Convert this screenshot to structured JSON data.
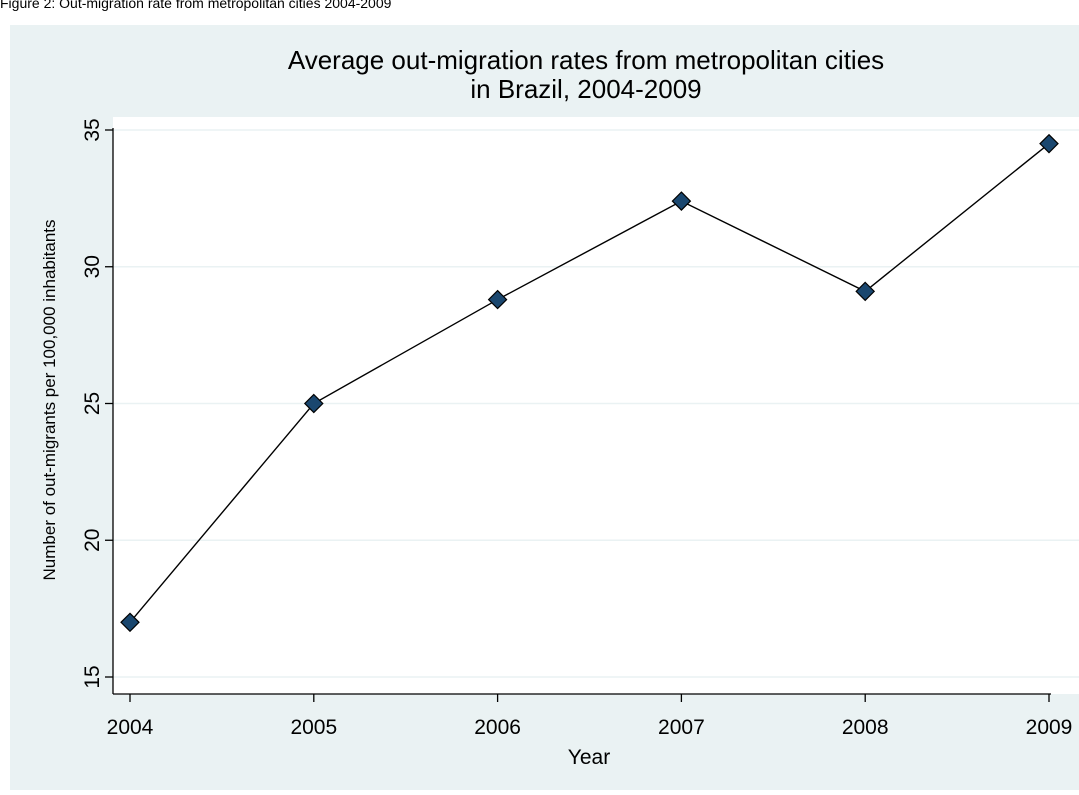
{
  "caption": "Figure 2: Out-migration rate from metropolitan cities 2004-2009",
  "colors": {
    "outer_background": "#eaf2f3",
    "plot_background": "#ffffff",
    "gridline": "#eaf2f3",
    "line": "#000000",
    "marker_fill": "#1a476f",
    "marker_stroke": "#000000"
  },
  "chart_data": {
    "type": "line",
    "title_line1": "Average out-migration rates from metropolitan cities",
    "title_line2": "in Brazil, 2004-2009",
    "xlabel": "Year",
    "ylabel": "Number of out-migrants per 100,000 inhabitants",
    "x": [
      2004,
      2005,
      2006,
      2007,
      2008,
      2009
    ],
    "x_tick_labels": [
      "2004",
      "2005",
      "2006",
      "2007",
      "2008",
      "2009"
    ],
    "y": [
      17.0,
      25.0,
      28.8,
      32.4,
      29.1,
      34.5
    ],
    "y_ticks": [
      15,
      20,
      25,
      30,
      35
    ],
    "y_tick_labels": [
      "15",
      "20",
      "25",
      "30",
      "35"
    ],
    "xlim": [
      2004,
      2009
    ],
    "ylim": [
      15,
      35
    ],
    "grid": true,
    "marker": "diamond",
    "legend": false
  }
}
